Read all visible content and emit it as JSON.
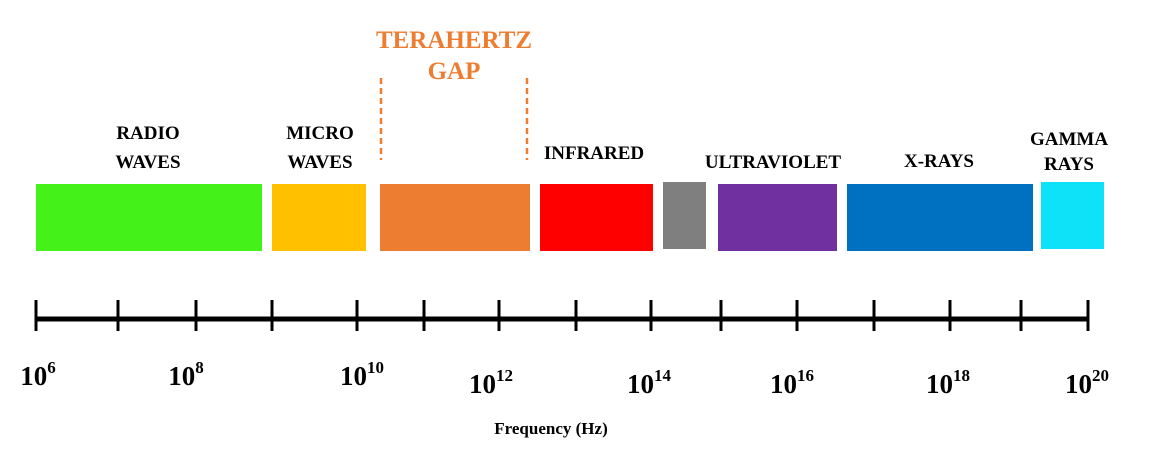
{
  "header": {
    "title": [
      "TERAHERTZ",
      "GAP"
    ]
  },
  "bands": [
    {
      "label": [
        "RADIO",
        "WAVES"
      ],
      "color": "#44f21a"
    },
    {
      "label": [
        "MICRO",
        "WAVES"
      ],
      "color": "#ffc000"
    },
    {
      "label": [],
      "color": "#ed7d31"
    },
    {
      "label": [
        "INFRARED"
      ],
      "color": "#ff0000"
    },
    {
      "label": [],
      "color": "#7f7f7f"
    },
    {
      "label": [
        "ULTRAVIOLET"
      ],
      "color": "#7030a0"
    },
    {
      "label": [
        "X-RAYS"
      ],
      "color": "#0070c0"
    },
    {
      "label": [
        "GAMMA",
        "RAYS"
      ],
      "color": "#0ee2f8"
    }
  ],
  "axis": {
    "ticks": [
      {
        "base": "10",
        "exponent": "6"
      },
      {
        "base": "10",
        "exponent": "8"
      },
      {
        "base": "10",
        "exponent": "10"
      },
      {
        "base": "10",
        "exponent": "12"
      },
      {
        "base": "10",
        "exponent": "14"
      },
      {
        "base": "10",
        "exponent": "16"
      },
      {
        "base": "10",
        "exponent": "18"
      },
      {
        "base": "10",
        "exponent": "20"
      }
    ],
    "label": "Frequency (Hz)"
  }
}
